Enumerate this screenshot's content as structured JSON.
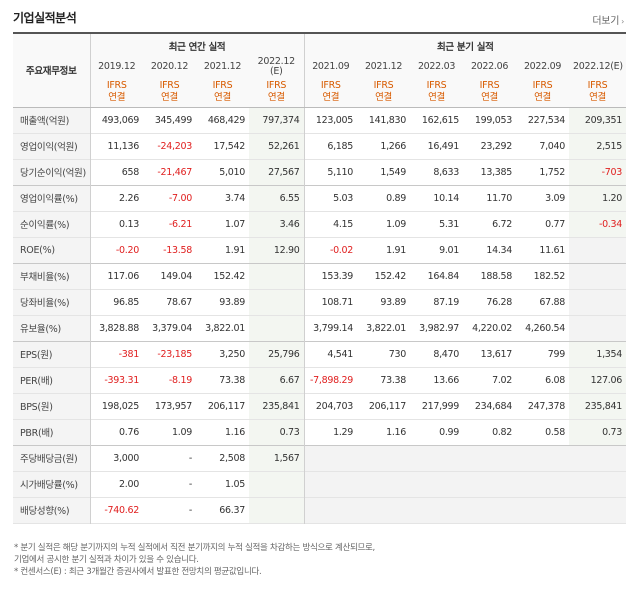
{
  "section_title": "기업실적분석",
  "more_link": "더보기",
  "label_header": "주요재무정보",
  "group_annual": "최근 연간 실적",
  "group_quarter": "최근 분기 실적",
  "dates": [
    "2019.12",
    "2020.12",
    "2021.12",
    "2022.12\n(E)",
    "2021.09",
    "2021.12",
    "2022.03",
    "2022.06",
    "2022.09",
    "2022.12(E)"
  ],
  "kinds": [
    "IFRS\n연결",
    "IFRS\n연결",
    "IFRS\n연결",
    "IFRS\n연결",
    "IFRS\n연결",
    "IFRS\n연결",
    "IFRS\n연결",
    "IFRS\n연결",
    "IFRS\n연결",
    "IFRS\n연결"
  ],
  "rows": [
    {
      "label": "매출액(억원)",
      "values": [
        "493,069",
        "345,499",
        "468,429",
        "797,374",
        "123,005",
        "141,830",
        "162,615",
        "199,053",
        "227,534",
        "209,351"
      ]
    },
    {
      "label": "영업이익(억원)",
      "values": [
        "11,136",
        "-24,203",
        "17,542",
        "52,261",
        "6,185",
        "1,266",
        "16,491",
        "23,292",
        "7,040",
        "2,515"
      ]
    },
    {
      "label": "당기순이익(억원)",
      "values": [
        "658",
        "-21,467",
        "5,010",
        "27,567",
        "5,110",
        "1,549",
        "8,633",
        "13,385",
        "1,752",
        "-703"
      ]
    },
    {
      "label": "영업이익률(%)",
      "values": [
        "2.26",
        "-7.00",
        "3.74",
        "6.55",
        "5.03",
        "0.89",
        "10.14",
        "11.70",
        "3.09",
        "1.20"
      ]
    },
    {
      "label": "순이익률(%)",
      "values": [
        "0.13",
        "-6.21",
        "1.07",
        "3.46",
        "4.15",
        "1.09",
        "5.31",
        "6.72",
        "0.77",
        "-0.34"
      ]
    },
    {
      "label": "ROE(%)",
      "values": [
        "-0.20",
        "-13.58",
        "1.91",
        "12.90",
        "-0.02",
        "1.91",
        "9.01",
        "14.34",
        "11.61",
        ""
      ]
    },
    {
      "label": "부채비율(%)",
      "values": [
        "117.06",
        "149.04",
        "152.42",
        "",
        "153.39",
        "152.42",
        "164.84",
        "188.58",
        "182.52",
        ""
      ]
    },
    {
      "label": "당좌비율(%)",
      "values": [
        "96.85",
        "78.67",
        "93.89",
        "",
        "108.71",
        "93.89",
        "87.19",
        "76.28",
        "67.88",
        ""
      ]
    },
    {
      "label": "유보율(%)",
      "values": [
        "3,828.88",
        "3,379.04",
        "3,822.01",
        "",
        "3,799.14",
        "3,822.01",
        "3,982.97",
        "4,220.02",
        "4,260.54",
        ""
      ]
    },
    {
      "label": "EPS(원)",
      "values": [
        "-381",
        "-23,185",
        "3,250",
        "25,796",
        "4,541",
        "730",
        "8,470",
        "13,617",
        "799",
        "1,354"
      ]
    },
    {
      "label": "PER(배)",
      "values": [
        "-393.31",
        "-8.19",
        "73.38",
        "6.67",
        "-7,898.29",
        "73.38",
        "13.66",
        "7.02",
        "6.08",
        "127.06"
      ]
    },
    {
      "label": "BPS(원)",
      "values": [
        "198,025",
        "173,957",
        "206,117",
        "235,841",
        "204,703",
        "206,117",
        "217,999",
        "234,684",
        "247,378",
        "235,841"
      ]
    },
    {
      "label": "PBR(배)",
      "values": [
        "0.76",
        "1.09",
        "1.16",
        "0.73",
        "1.29",
        "1.16",
        "0.99",
        "0.82",
        "0.58",
        "0.73"
      ]
    },
    {
      "label": "주당배당금(원)",
      "values": [
        "3,000",
        "-",
        "2,508",
        "1,567",
        "",
        "",
        "",
        "",
        "",
        ""
      ]
    },
    {
      "label": "시가배당률(%)",
      "values": [
        "2.00",
        "-",
        "1.05",
        "",
        "",
        "",
        "",
        "",
        "",
        ""
      ]
    },
    {
      "label": "배당성향(%)",
      "values": [
        "-740.62",
        "-",
        "66.37",
        "",
        "",
        "",
        "",
        "",
        "",
        ""
      ]
    }
  ],
  "notes": [
    "* 분기 실적은 해당 분기까지의 누적 실적에서 직전 분기까지의 누적 실적을 차감하는 방식으로 계산되므로,",
    "   기업에서 공시한 분기 실적과 차이가 있을 수 있습니다.",
    "* 컨센서스(E) : 최근 3개월간 증권사에서 발표한 전망치의 평균값입니다."
  ]
}
